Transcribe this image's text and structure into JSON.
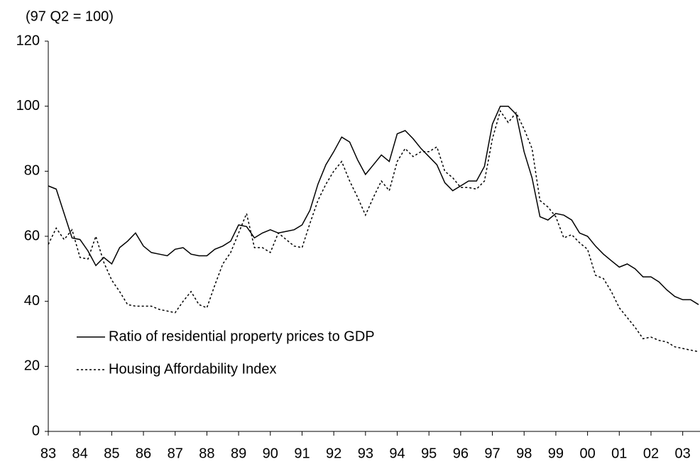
{
  "chart_data": {
    "type": "line",
    "y_label": "(97 Q2 = 100)",
    "categories": [
      "83",
      null,
      null,
      null,
      "84",
      null,
      null,
      null,
      "85",
      null,
      null,
      null,
      "86",
      null,
      null,
      null,
      "87",
      null,
      null,
      null,
      "88",
      null,
      null,
      null,
      "89",
      null,
      null,
      null,
      "90",
      null,
      null,
      null,
      "91",
      null,
      null,
      null,
      "92",
      null,
      null,
      null,
      "93",
      null,
      null,
      null,
      "94",
      null,
      null,
      null,
      "95",
      null,
      null,
      null,
      "96",
      null,
      null,
      null,
      "97",
      null,
      null,
      null,
      "98",
      null,
      null,
      null,
      "99",
      null,
      null,
      null,
      "00",
      null,
      null,
      null,
      "01",
      null,
      null,
      null,
      "02",
      null,
      null,
      null,
      "03",
      null,
      null
    ],
    "series": [
      {
        "name": "Ratio of residential property prices to GDP",
        "color": "#000000",
        "dash": "solid",
        "values": [
          75.5,
          74.5,
          67,
          59.5,
          59,
          55.5,
          51,
          53.5,
          51.5,
          56.5,
          58.5,
          61,
          57,
          55,
          54.5,
          54,
          56,
          56.5,
          54.5,
          54,
          54,
          56,
          57,
          58.5,
          63.5,
          63,
          59.5,
          61,
          62,
          61,
          61.5,
          62,
          63.5,
          68,
          76,
          82,
          86,
          90.5,
          89,
          83.5,
          79,
          82,
          85,
          83,
          91.5,
          92.5,
          90,
          87,
          84.5,
          82,
          76.5,
          74,
          75.5,
          77,
          77,
          81.5,
          94.5,
          100,
          100,
          97.5,
          86,
          78,
          66,
          65,
          67,
          66.5,
          65,
          61,
          60,
          57,
          54.5,
          52.5,
          50.5,
          51.5,
          50,
          47.5,
          47.5,
          46,
          43.5,
          41.5,
          40.5,
          40.5,
          39
        ]
      },
      {
        "name": "Housing Affordability Index",
        "color": "#000000",
        "dash": "dotted",
        "values": [
          57.5,
          62.5,
          59,
          62,
          53.5,
          53,
          60,
          52,
          46.5,
          43,
          39,
          38.5,
          38.5,
          38.5,
          37.5,
          37,
          36.5,
          40,
          43,
          39,
          38,
          45,
          51.5,
          55,
          61,
          67,
          56.5,
          56.5,
          55,
          61,
          59,
          57,
          56.5,
          64,
          71,
          76,
          80,
          83,
          77,
          72,
          66.5,
          72,
          77,
          74,
          83,
          87,
          84.5,
          86,
          86,
          87.5,
          80,
          78,
          75,
          75,
          74.5,
          77,
          90,
          98.5,
          95,
          98,
          93,
          87,
          71,
          69,
          66,
          59.5,
          60.5,
          58,
          56,
          48,
          47,
          43,
          38,
          35,
          32,
          28.5,
          29,
          28,
          27.5,
          26,
          25.5,
          25,
          24.5
        ]
      }
    ],
    "ylim": [
      0,
      120
    ],
    "yticks": [
      0,
      20,
      40,
      60,
      80,
      100,
      120
    ],
    "legend": "lower left"
  }
}
